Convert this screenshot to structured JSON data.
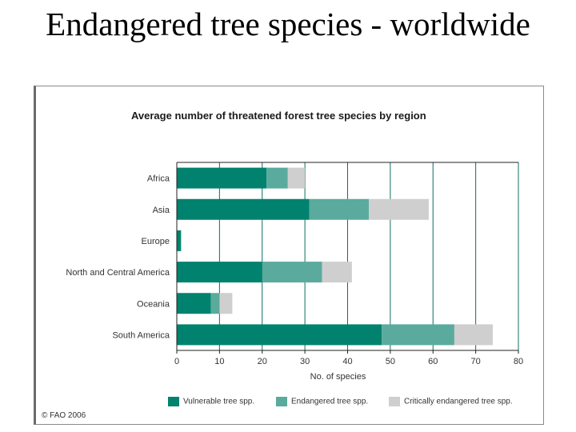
{
  "slide": {
    "title": "Endangered tree species - worldwide"
  },
  "copyright": "© FAO 2006",
  "colors": {
    "vulnerable": "#00826f",
    "endangered": "#5aab9d",
    "critically_endangered": "#cfcfcf",
    "grid": "#0b6f62"
  },
  "chart_data": {
    "type": "bar",
    "orientation": "horizontal",
    "stacked": true,
    "title": "Average number of threatened forest tree species by region",
    "xlabel": "No. of species",
    "ylabel": "",
    "xlim": [
      0,
      80
    ],
    "xticks": [
      0,
      10,
      20,
      30,
      40,
      50,
      60,
      70,
      80
    ],
    "grid": true,
    "legend": "bottom",
    "categories": [
      "Africa",
      "Asia",
      "Europe",
      "North and Central America",
      "Oceania",
      "South America"
    ],
    "series": [
      {
        "name": "Vulnerable tree spp.",
        "values": [
          21,
          31,
          1,
          20,
          8,
          48
        ]
      },
      {
        "name": "Endangered tree spp.",
        "values": [
          5,
          14,
          0,
          14,
          2,
          17
        ]
      },
      {
        "name": "Critically endangered tree spp.",
        "values": [
          4,
          14,
          0,
          7,
          3,
          9
        ]
      }
    ]
  }
}
